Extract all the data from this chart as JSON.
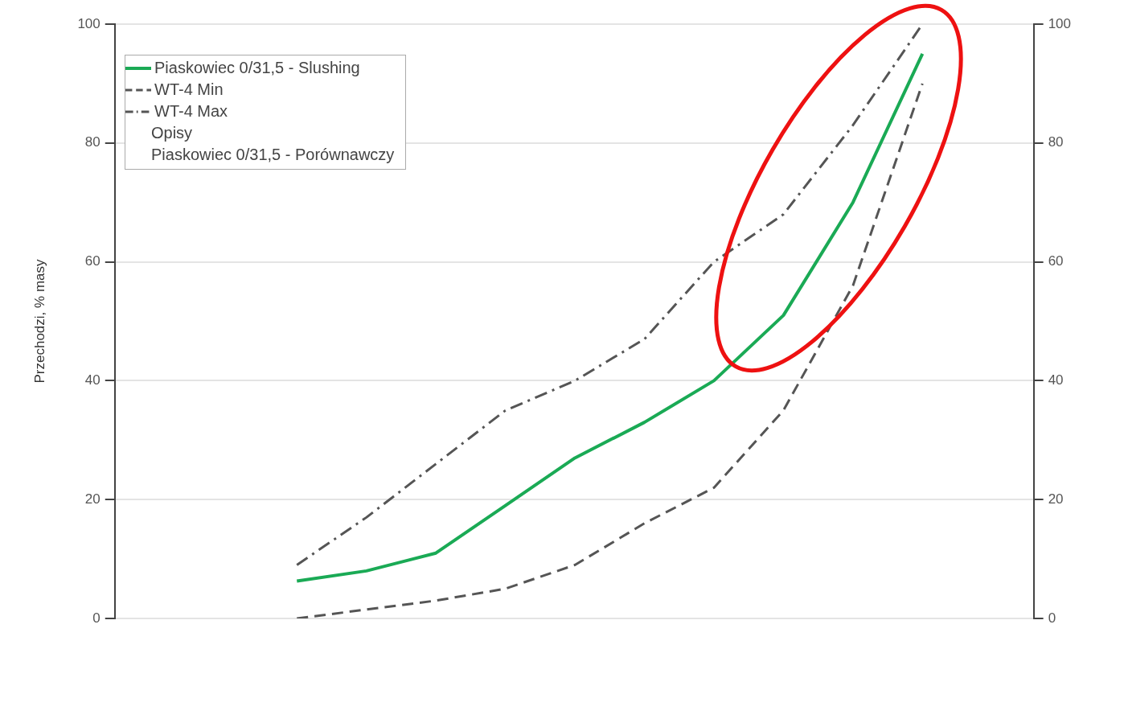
{
  "chart_data": {
    "type": "line",
    "ylabel": "Przechodzi, % masy",
    "categories": [
      null,
      null,
      null,
      null,
      null,
      null,
      null,
      null,
      null,
      null
    ],
    "series": [
      {
        "name": "Piaskowiec 0/31,5 - Slushing",
        "color": "#1aaa55",
        "values": [
          6.3,
          8,
          11,
          19,
          27,
          33,
          40,
          51,
          70,
          95
        ],
        "line_style": "solid"
      },
      {
        "name": "WT-4 Min",
        "color": "#555555",
        "values": [
          0,
          1.5,
          3,
          5,
          9,
          16,
          22,
          35,
          56,
          90
        ],
        "line_style": "dashed"
      },
      {
        "name": "WT-4 Max",
        "color": "#555555",
        "values": [
          9,
          17,
          26,
          35,
          40,
          47,
          60,
          68,
          83,
          100
        ],
        "line_style": "dashdot"
      }
    ],
    "annotations": [
      "Opisy",
      "Piaskowiec 0/31,5 - Porównawczy"
    ],
    "ylim": [
      0,
      100
    ],
    "yticks": [
      0,
      20,
      40,
      60,
      80,
      100
    ],
    "y2lim": [
      0,
      100
    ],
    "y2ticks": [
      0,
      20,
      40,
      60,
      80,
      100
    ],
    "tick_labels": "y",
    "grid": "y",
    "legend": "top left",
    "marker": "none"
  }
}
